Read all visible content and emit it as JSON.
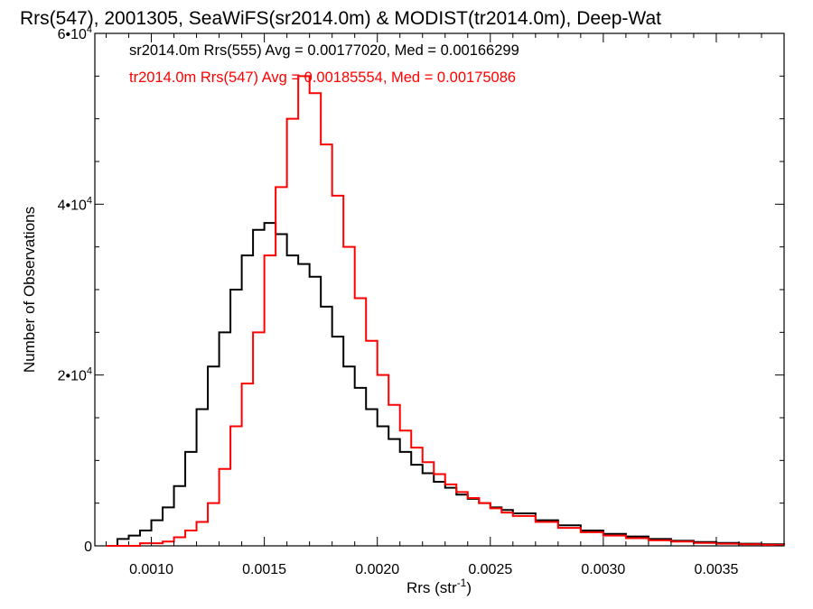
{
  "chart_data": {
    "type": "histogram-step",
    "title": "Rrs(547), 2001305, SeaWiFS(sr2014.0m) & MODIST(tr2014.0m), Deep-Wat",
    "xlabel_main": "Rrs (str",
    "xlabel_sup": "-1",
    "xlabel_close": ")",
    "ylabel": "Number of Observations",
    "xlim": [
      0.00075,
      0.0038
    ],
    "ylim": [
      0,
      60000
    ],
    "x_ticks": [
      {
        "value": 0.001,
        "label": "0.0010"
      },
      {
        "value": 0.0015,
        "label": "0.0015"
      },
      {
        "value": 0.002,
        "label": "0.0020"
      },
      {
        "value": 0.0025,
        "label": "0.0025"
      },
      {
        "value": 0.003,
        "label": "0.0030"
      },
      {
        "value": 0.0035,
        "label": "0.0035"
      }
    ],
    "y_ticks": [
      {
        "value": 0,
        "base": "0",
        "exp": ""
      },
      {
        "value": 20000,
        "base": "2•10",
        "exp": "4"
      },
      {
        "value": 40000,
        "base": "4•10",
        "exp": "4"
      },
      {
        "value": 60000,
        "base": "6•10",
        "exp": "4"
      }
    ],
    "series": [
      {
        "name": "sr2014.0m Rrs(555)",
        "legend": "sr2014.0m Rrs(555) Avg = 0.00177020, Med = 0.00166299",
        "color": "#000000",
        "points": [
          [
            0.0008,
            0
          ],
          [
            0.00085,
            800
          ],
          [
            0.0009,
            1200
          ],
          [
            0.00095,
            1800
          ],
          [
            0.001,
            3000
          ],
          [
            0.00105,
            4500
          ],
          [
            0.0011,
            7000
          ],
          [
            0.00115,
            11000
          ],
          [
            0.0012,
            16000
          ],
          [
            0.00125,
            21000
          ],
          [
            0.0013,
            25000
          ],
          [
            0.00135,
            30000
          ],
          [
            0.0014,
            34000
          ],
          [
            0.00145,
            37000
          ],
          [
            0.0015,
            37800
          ],
          [
            0.00155,
            36500
          ],
          [
            0.0016,
            34000
          ],
          [
            0.00165,
            33000
          ],
          [
            0.0017,
            31500
          ],
          [
            0.00175,
            28000
          ],
          [
            0.0018,
            24500
          ],
          [
            0.00185,
            21000
          ],
          [
            0.0019,
            18500
          ],
          [
            0.00195,
            16000
          ],
          [
            0.002,
            14000
          ],
          [
            0.00205,
            12500
          ],
          [
            0.0021,
            11000
          ],
          [
            0.00215,
            9500
          ],
          [
            0.0022,
            8500
          ],
          [
            0.00225,
            7500
          ],
          [
            0.0023,
            6800
          ],
          [
            0.00235,
            6000
          ],
          [
            0.0024,
            5500
          ],
          [
            0.00245,
            5000
          ],
          [
            0.0025,
            4500
          ],
          [
            0.00255,
            4200
          ],
          [
            0.0026,
            3800
          ],
          [
            0.0027,
            3000
          ],
          [
            0.0028,
            2400
          ],
          [
            0.0029,
            1800
          ],
          [
            0.003,
            1400
          ],
          [
            0.0031,
            1100
          ],
          [
            0.0032,
            800
          ],
          [
            0.0033,
            600
          ],
          [
            0.0034,
            450
          ],
          [
            0.0035,
            350
          ],
          [
            0.0036,
            250
          ],
          [
            0.0037,
            180
          ],
          [
            0.0038,
            120
          ]
        ]
      },
      {
        "name": "tr2014.0m Rrs(547)",
        "legend": "tr2014.0m Rrs(547) Avg = 0.00185554, Med = 0.00175086",
        "color": "#ff0000",
        "points": [
          [
            0.0008,
            0
          ],
          [
            0.00095,
            300
          ],
          [
            0.001,
            300
          ],
          [
            0.00105,
            500
          ],
          [
            0.0011,
            1000
          ],
          [
            0.00115,
            1800
          ],
          [
            0.0012,
            2800
          ],
          [
            0.00125,
            5000
          ],
          [
            0.0013,
            9000
          ],
          [
            0.00135,
            14000
          ],
          [
            0.0014,
            19000
          ],
          [
            0.00145,
            25000
          ],
          [
            0.0015,
            34000
          ],
          [
            0.00155,
            42000
          ],
          [
            0.0016,
            50000
          ],
          [
            0.00165,
            55000
          ],
          [
            0.0017,
            53000
          ],
          [
            0.00175,
            47000
          ],
          [
            0.0018,
            41000
          ],
          [
            0.00185,
            35000
          ],
          [
            0.0019,
            29000
          ],
          [
            0.00195,
            24000
          ],
          [
            0.002,
            20000
          ],
          [
            0.00205,
            16500
          ],
          [
            0.0021,
            13500
          ],
          [
            0.00215,
            11500
          ],
          [
            0.0022,
            9800
          ],
          [
            0.00225,
            8400
          ],
          [
            0.0023,
            7200
          ],
          [
            0.00235,
            6300
          ],
          [
            0.0024,
            5600
          ],
          [
            0.00245,
            5000
          ],
          [
            0.0025,
            4400
          ],
          [
            0.00255,
            3900
          ],
          [
            0.0026,
            3500
          ],
          [
            0.0027,
            2800
          ],
          [
            0.0028,
            2100
          ],
          [
            0.0029,
            1600
          ],
          [
            0.003,
            1200
          ],
          [
            0.0031,
            900
          ],
          [
            0.0032,
            650
          ],
          [
            0.0033,
            500
          ],
          [
            0.0034,
            350
          ],
          [
            0.0035,
            250
          ],
          [
            0.0036,
            180
          ],
          [
            0.0037,
            120
          ],
          [
            0.0038,
            80
          ]
        ]
      }
    ]
  }
}
